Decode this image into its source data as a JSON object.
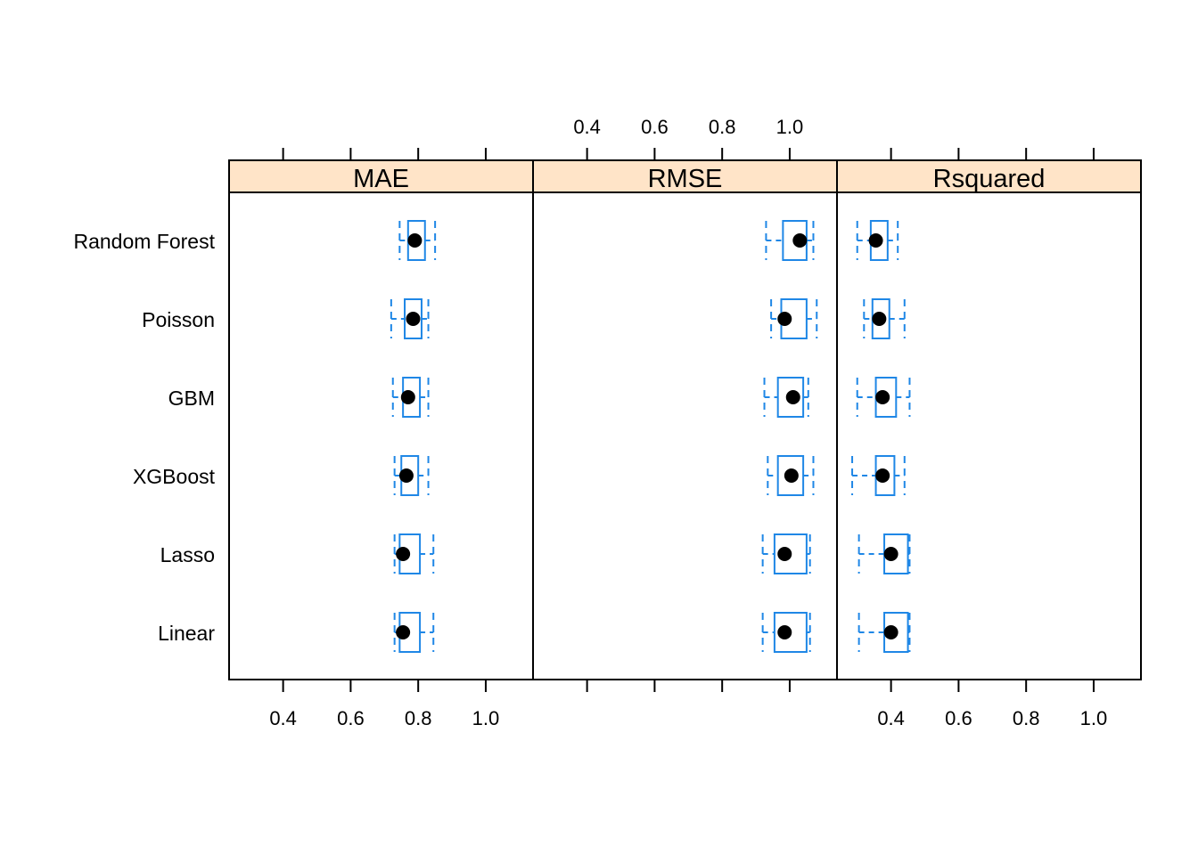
{
  "chart_data": {
    "type": "boxplot",
    "categories": [
      "Random Forest",
      "Poisson",
      "GBM",
      "XGBoost",
      "Lasso",
      "Linear"
    ],
    "xlim": [
      0.24,
      1.14
    ],
    "ticks": [
      0.4,
      0.6,
      0.8,
      1.0
    ],
    "tick_labels": [
      "0.4",
      "0.6",
      "0.8",
      "1.0"
    ],
    "colors": {
      "box": "#1f87e6",
      "strip": "#ffe4c8",
      "median": "#000000"
    },
    "panels": [
      {
        "name": "MAE",
        "boxes": [
          {
            "category": "Random Forest",
            "min": 0.745,
            "q1": 0.77,
            "median": 0.79,
            "q3": 0.82,
            "max": 0.85
          },
          {
            "category": "Poisson",
            "min": 0.72,
            "q1": 0.76,
            "median": 0.785,
            "q3": 0.81,
            "max": 0.83
          },
          {
            "category": "GBM",
            "min": 0.725,
            "q1": 0.755,
            "median": 0.77,
            "q3": 0.805,
            "max": 0.83
          },
          {
            "category": "XGBoost",
            "min": 0.73,
            "q1": 0.75,
            "median": 0.765,
            "q3": 0.8,
            "max": 0.83
          },
          {
            "category": "Lasso",
            "min": 0.73,
            "q1": 0.745,
            "median": 0.755,
            "q3": 0.805,
            "max": 0.845
          },
          {
            "category": "Linear",
            "min": 0.73,
            "q1": 0.745,
            "median": 0.755,
            "q3": 0.805,
            "max": 0.845
          }
        ]
      },
      {
        "name": "RMSE",
        "boxes": [
          {
            "category": "Random Forest",
            "min": 0.93,
            "q1": 0.98,
            "median": 1.03,
            "q3": 1.05,
            "max": 1.07
          },
          {
            "category": "Poisson",
            "min": 0.945,
            "q1": 0.975,
            "median": 0.985,
            "q3": 1.05,
            "max": 1.08
          },
          {
            "category": "GBM",
            "min": 0.925,
            "q1": 0.965,
            "median": 1.01,
            "q3": 1.04,
            "max": 1.055
          },
          {
            "category": "XGBoost",
            "min": 0.935,
            "q1": 0.965,
            "median": 1.005,
            "q3": 1.04,
            "max": 1.07
          },
          {
            "category": "Lasso",
            "min": 0.92,
            "q1": 0.955,
            "median": 0.985,
            "q3": 1.05,
            "max": 1.06
          },
          {
            "category": "Linear",
            "min": 0.92,
            "q1": 0.955,
            "median": 0.985,
            "q3": 1.05,
            "max": 1.06
          }
        ]
      },
      {
        "name": "Rsquared",
        "boxes": [
          {
            "category": "Random Forest",
            "min": 0.3,
            "q1": 0.34,
            "median": 0.355,
            "q3": 0.39,
            "max": 0.42
          },
          {
            "category": "Poisson",
            "min": 0.32,
            "q1": 0.345,
            "median": 0.365,
            "q3": 0.395,
            "max": 0.44
          },
          {
            "category": "GBM",
            "min": 0.3,
            "q1": 0.355,
            "median": 0.375,
            "q3": 0.415,
            "max": 0.455
          },
          {
            "category": "XGBoost",
            "min": 0.285,
            "q1": 0.355,
            "median": 0.375,
            "q3": 0.41,
            "max": 0.44
          },
          {
            "category": "Lasso",
            "min": 0.305,
            "q1": 0.38,
            "median": 0.4,
            "q3": 0.45,
            "max": 0.455
          },
          {
            "category": "Linear",
            "min": 0.305,
            "q1": 0.38,
            "median": 0.4,
            "q3": 0.45,
            "max": 0.455
          }
        ]
      }
    ],
    "tick_positions": {
      "top": [
        "RMSE"
      ],
      "bottom_labels": [
        "MAE",
        "Rsquared"
      ],
      "bottom_ticks_only": [
        "RMSE"
      ],
      "top_ticks_only": [
        "MAE",
        "Rsquared"
      ]
    }
  }
}
